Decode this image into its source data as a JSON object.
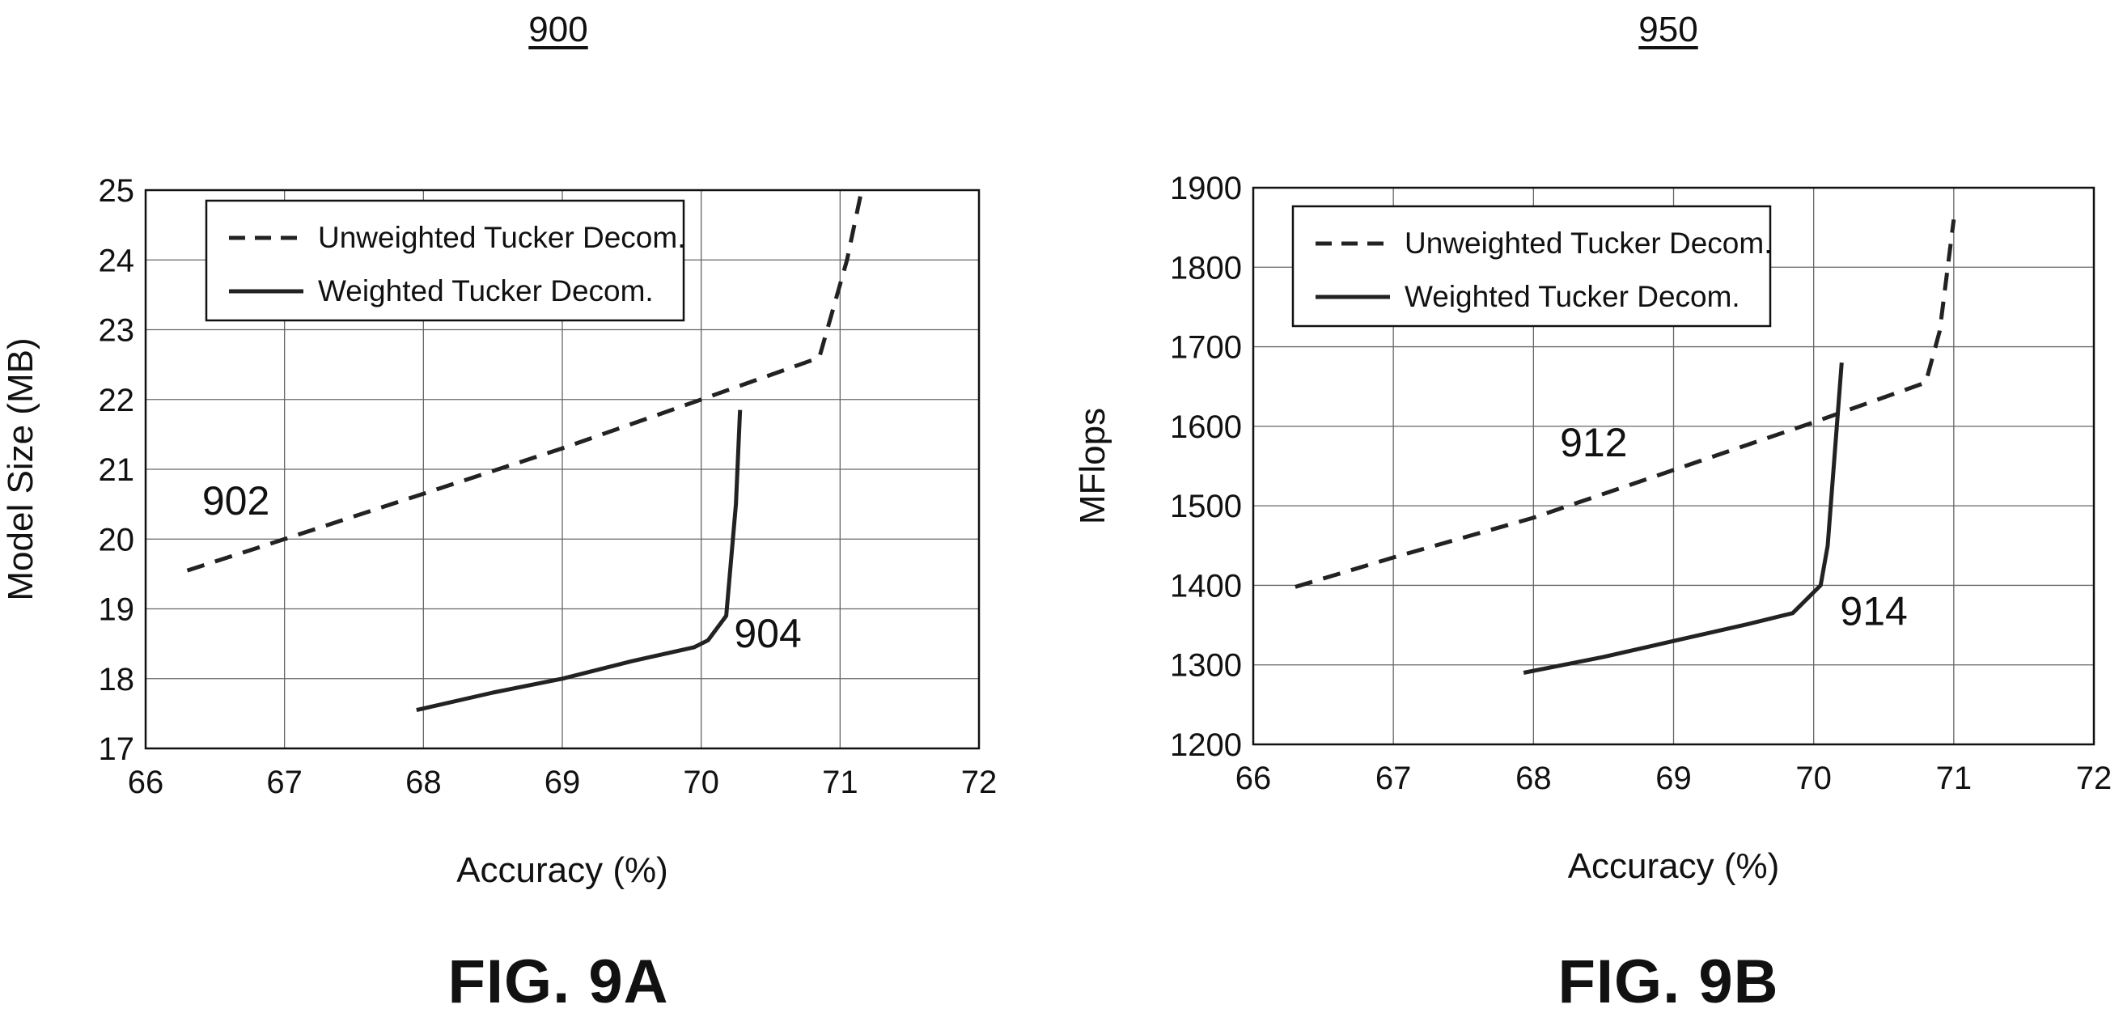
{
  "figures": [
    {
      "ref": "900",
      "caption": "FIG. 9A",
      "chart_data": {
        "type": "line",
        "xlabel": "Accuracy (%)",
        "ylabel": "Model Size (MB)",
        "xlim": [
          66,
          72
        ],
        "ylim": [
          17,
          25
        ],
        "xticks": [
          "66",
          "67",
          "68",
          "69",
          "70",
          "71",
          "72"
        ],
        "yticks": [
          "17",
          "18",
          "19",
          "20",
          "21",
          "22",
          "23",
          "24",
          "25"
        ],
        "grid": true,
        "legend_position": "top-left",
        "series": [
          {
            "name": "Unweighted Tucker Decom.",
            "style": "dashed",
            "color": "#222222",
            "points": [
              [
                66.3,
                19.55
              ],
              [
                67.0,
                20.0
              ],
              [
                68.0,
                20.65
              ],
              [
                69.0,
                21.3
              ],
              [
                70.0,
                22.0
              ],
              [
                70.85,
                22.6
              ],
              [
                71.05,
                24.0
              ],
              [
                71.15,
                24.95
              ]
            ]
          },
          {
            "name": "Weighted Tucker Decom.",
            "style": "solid",
            "color": "#222222",
            "points": [
              [
                67.95,
                17.55
              ],
              [
                68.5,
                17.8
              ],
              [
                69.0,
                18.0
              ],
              [
                69.5,
                18.25
              ],
              [
                69.95,
                18.45
              ],
              [
                70.05,
                18.55
              ],
              [
                70.18,
                18.9
              ],
              [
                70.25,
                20.5
              ],
              [
                70.28,
                21.85
              ]
            ]
          }
        ],
        "annotations": [
          {
            "text": "902",
            "x": 66.65,
            "y": 20.35
          },
          {
            "text": "904",
            "x": 70.48,
            "y": 18.45
          }
        ]
      }
    },
    {
      "ref": "950",
      "caption": "FIG. 9B",
      "chart_data": {
        "type": "line",
        "xlabel": "Accuracy (%)",
        "ylabel": "MFlops",
        "xlim": [
          66,
          72
        ],
        "ylim": [
          1200,
          1900
        ],
        "xticks": [
          "66",
          "67",
          "68",
          "69",
          "70",
          "71",
          "72"
        ],
        "yticks": [
          "1200",
          "1300",
          "1400",
          "1500",
          "1600",
          "1700",
          "1800",
          "1900"
        ],
        "grid": true,
        "legend_position": "top-left",
        "series": [
          {
            "name": "Unweighted Tucker Decom.",
            "style": "dashed",
            "color": "#222222",
            "points": [
              [
                66.3,
                1398
              ],
              [
                67.0,
                1435
              ],
              [
                68.0,
                1485
              ],
              [
                69.0,
                1545
              ],
              [
                70.0,
                1605
              ],
              [
                70.8,
                1655
              ],
              [
                70.9,
                1720
              ],
              [
                71.0,
                1860
              ]
            ]
          },
          {
            "name": "Weighted Tucker Decom.",
            "style": "solid",
            "color": "#222222",
            "points": [
              [
                67.93,
                1290
              ],
              [
                68.5,
                1310
              ],
              [
                69.0,
                1330
              ],
              [
                69.5,
                1350
              ],
              [
                69.85,
                1365
              ],
              [
                70.05,
                1400
              ],
              [
                70.1,
                1450
              ],
              [
                70.2,
                1680
              ]
            ]
          }
        ],
        "annotations": [
          {
            "text": "912",
            "x": 68.43,
            "y": 1562
          },
          {
            "text": "914",
            "x": 70.43,
            "y": 1350
          }
        ]
      }
    }
  ]
}
